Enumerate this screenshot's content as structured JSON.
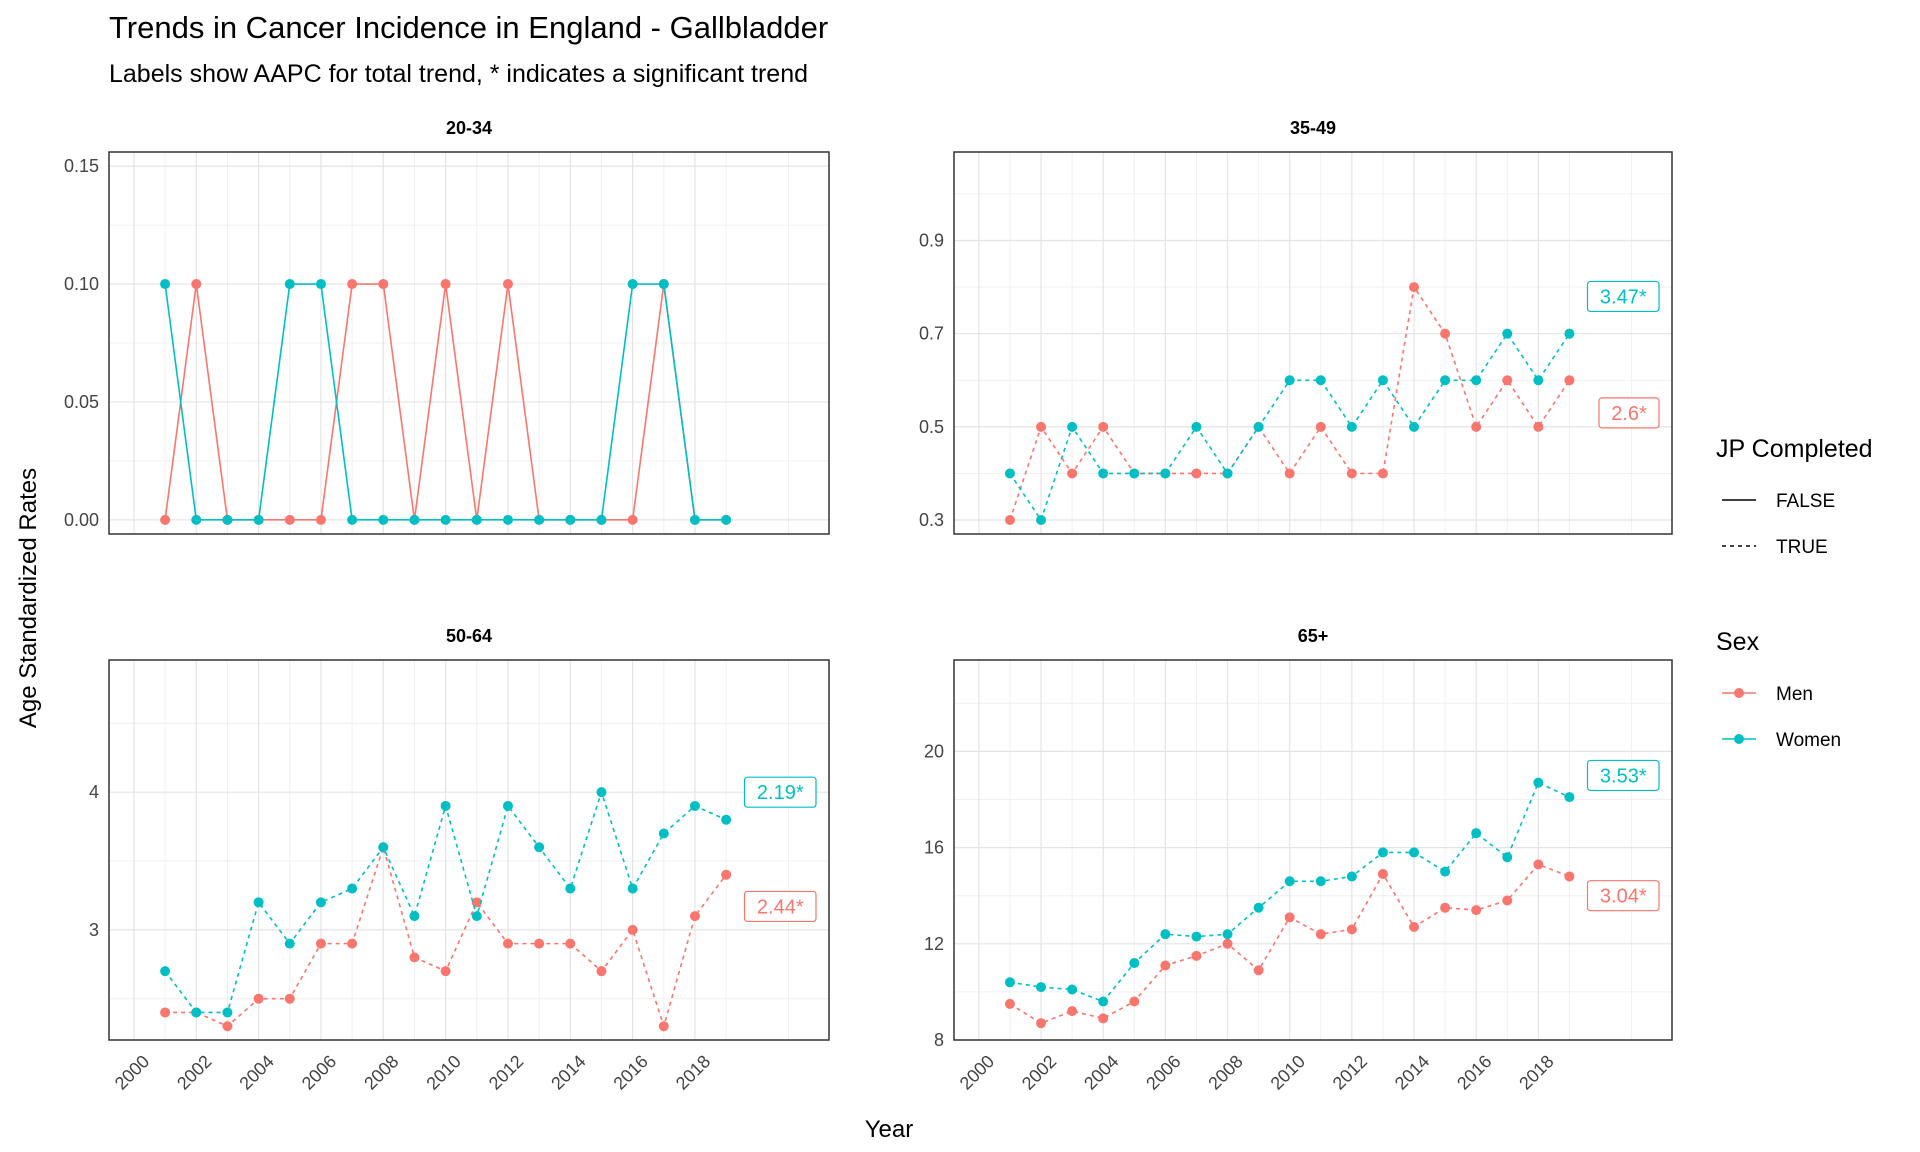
{
  "title": "Trends in Cancer Incidence in England - Gallbladder",
  "subtitle": "Labels show AAPC for total trend, * indicates a significant trend",
  "chart_data": {
    "type": "line",
    "xlabel": "Year",
    "ylabel": "Age Standardized Rates",
    "x": [
      2001,
      2002,
      2003,
      2004,
      2005,
      2006,
      2007,
      2008,
      2009,
      2010,
      2011,
      2012,
      2013,
      2014,
      2015,
      2016,
      2017,
      2018,
      2019
    ],
    "x_ticks": [
      "2000",
      "2002",
      "2004",
      "2006",
      "2008",
      "2010",
      "2012",
      "2014",
      "2016",
      "2018"
    ],
    "xlim": [
      1999.2,
      2022.3
    ],
    "colors": {
      "Men": "#F8766D",
      "Women": "#00BFC4"
    },
    "legend": {
      "position": "right",
      "linetype_title": "JP Completed",
      "linetype_items": [
        "FALSE",
        "TRUE"
      ],
      "color_title": "Sex",
      "color_items": [
        "Men",
        "Women"
      ]
    },
    "panels": [
      {
        "label": "20-34",
        "ylim": [
          -0.006,
          0.156
        ],
        "y_ticks": [
          "0.00",
          "0.05",
          "0.10",
          "0.15"
        ],
        "y_tick_values": [
          0,
          0.05,
          0.1,
          0.15
        ],
        "jp_completed": "FALSE",
        "series": [
          {
            "name": "Men",
            "values": [
              0,
              0.1,
              0,
              0,
              0,
              0,
              0.1,
              0.1,
              0,
              0.1,
              0,
              0.1,
              0,
              0,
              0,
              0,
              0.1,
              0,
              0
            ]
          },
          {
            "name": "Women",
            "values": [
              0.1,
              0,
              0,
              0,
              0.1,
              0.1,
              0,
              0,
              0,
              0,
              0,
              0,
              0,
              0,
              0,
              0.1,
              0.1,
              0,
              0
            ]
          }
        ],
        "labels": []
      },
      {
        "label": "35-49",
        "ylim": [
          0.27,
          1.09
        ],
        "y_ticks": [
          "0.3",
          "0.5",
          "0.7",
          "0.9"
        ],
        "y_tick_values": [
          0.3,
          0.5,
          0.7,
          0.9
        ],
        "jp_completed": "TRUE",
        "series": [
          {
            "name": "Men",
            "values": [
              0.3,
              0.5,
              0.4,
              0.5,
              0.4,
              0.4,
              0.4,
              0.4,
              0.5,
              0.4,
              0.5,
              0.4,
              0.4,
              0.8,
              0.7,
              0.5,
              0.6,
              0.5,
              0.6
            ]
          },
          {
            "name": "Women",
            "values": [
              0.4,
              0.3,
              0.5,
              0.4,
              0.4,
              0.4,
              0.5,
              0.4,
              0.5,
              0.6,
              0.6,
              0.5,
              0.6,
              0.5,
              0.6,
              0.6,
              0.7,
              0.6,
              0.7
            ]
          }
        ],
        "labels": [
          {
            "series": "Women",
            "text": "3.47*",
            "y": 0.78
          },
          {
            "series": "Men",
            "text": "2.6*",
            "y": 0.53
          }
        ]
      },
      {
        "label": "50-64",
        "ylim": [
          2.2,
          4.96
        ],
        "y_ticks": [
          "3",
          "4"
        ],
        "y_tick_values": [
          3,
          4
        ],
        "jp_completed": "TRUE",
        "series": [
          {
            "name": "Men",
            "values": [
              2.4,
              2.4,
              2.3,
              2.5,
              2.5,
              2.9,
              2.9,
              3.6,
              2.8,
              2.7,
              3.2,
              2.9,
              2.9,
              2.9,
              2.7,
              3.0,
              2.3,
              3.1,
              3.4
            ]
          },
          {
            "name": "Women",
            "values": [
              2.7,
              2.4,
              2.4,
              3.2,
              2.9,
              3.2,
              3.3,
              3.6,
              3.1,
              3.9,
              3.1,
              3.9,
              3.6,
              3.3,
              4.0,
              3.3,
              3.7,
              3.9,
              3.8
            ]
          }
        ],
        "labels": [
          {
            "series": "Women",
            "text": "2.19*",
            "y": 4.0
          },
          {
            "series": "Men",
            "text": "2.44*",
            "y": 3.17
          }
        ]
      },
      {
        "label": "65+",
        "ylim": [
          8,
          23.8
        ],
        "y_ticks": [
          "8",
          "12",
          "16",
          "20"
        ],
        "y_tick_values": [
          8,
          12,
          16,
          20
        ],
        "jp_completed": "TRUE",
        "series": [
          {
            "name": "Men",
            "values": [
              9.5,
              8.7,
              9.2,
              8.9,
              9.6,
              11.1,
              11.5,
              12.0,
              10.9,
              13.1,
              12.4,
              12.6,
              14.9,
              12.7,
              13.5,
              13.4,
              13.8,
              15.3,
              14.8
            ]
          },
          {
            "name": "Women",
            "values": [
              10.4,
              10.2,
              10.1,
              9.6,
              11.2,
              12.4,
              12.3,
              12.4,
              13.5,
              14.6,
              14.6,
              14.8,
              15.8,
              15.8,
              15.0,
              16.6,
              15.6,
              18.7,
              18.1
            ]
          }
        ],
        "labels": [
          {
            "series": "Women",
            "text": "3.53*",
            "y": 19.0
          },
          {
            "series": "Men",
            "text": "3.04*",
            "y": 14.0
          }
        ]
      }
    ]
  }
}
